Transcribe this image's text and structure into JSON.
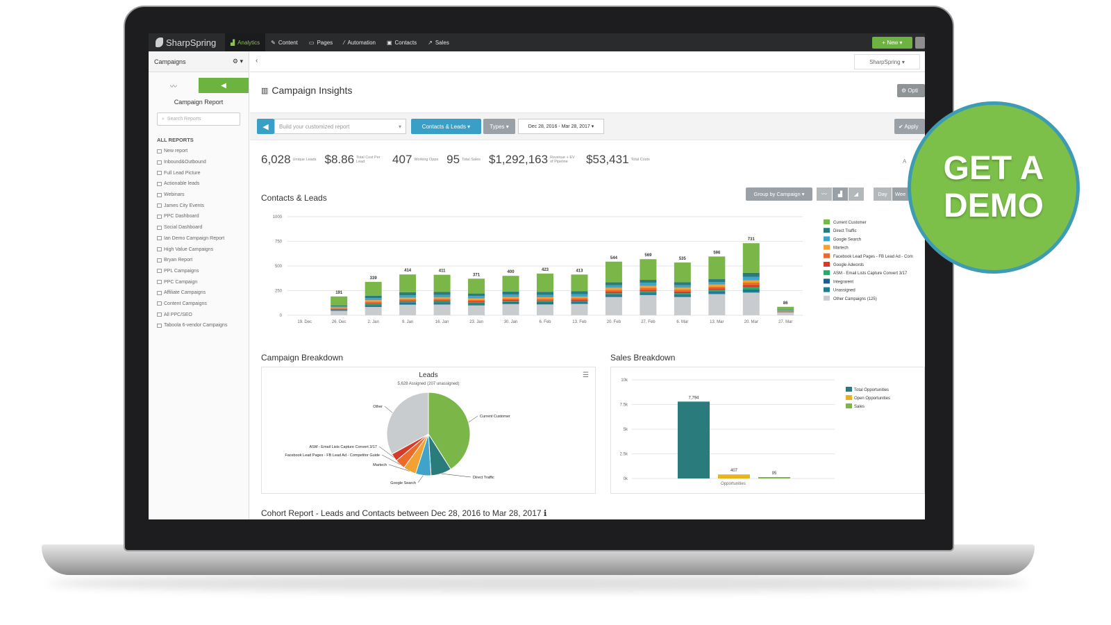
{
  "nav": {
    "logo": "SharpSpring",
    "items": [
      {
        "label": "Analytics",
        "icon": "chart-icon",
        "active": true
      },
      {
        "label": "Content",
        "icon": "pencil-icon"
      },
      {
        "label": "Pages",
        "icon": "page-icon"
      },
      {
        "label": "Automation",
        "icon": "wand-icon"
      },
      {
        "label": "Contacts",
        "icon": "contact-icon"
      },
      {
        "label": "Sales",
        "icon": "trend-icon"
      }
    ],
    "new_label": "+ New ▾"
  },
  "sidebar": {
    "header": "Campaigns",
    "report_title": "Campaign Report",
    "search_placeholder": "Search Reports",
    "all_reports": "ALL REPORTS",
    "reports": [
      "New report",
      "Inbound&Outbound",
      "Full Lead Picture",
      "Actionable leads",
      "Webinars",
      "James City Events",
      "PPC Dashboard",
      "Social Dashboard",
      "Ian Demo Campaign Report",
      "High Value Campaigns",
      "Bryan Report",
      "PPL Campaigns",
      "PPC Campaign",
      "Affiliate Campaigns",
      "Content Campaigns",
      "All PPC/SEO",
      "Taboola 6-vendor Campaigns"
    ]
  },
  "main": {
    "account": "SharpSpring ▾",
    "title": "Campaign Insights",
    "options_label": "⚙ Opti",
    "builder_placeholder": "Build your customized report",
    "contacts_leads": "Contacts & Leads ▾",
    "types": "Types ▾",
    "date_range": "Dec 28, 2016 - Mar 28, 2017 ▾",
    "apply": "✔ Apply",
    "stats": [
      {
        "value": "6,028",
        "label": "Unique Leads"
      },
      {
        "value": "$8.86",
        "label": "Total Cost Per Lead"
      },
      {
        "value": "407",
        "label": "Working Opps"
      },
      {
        "value": "95",
        "label": "Total Sales"
      },
      {
        "value": "$1,292,163",
        "label": "Revenue + EV of Pipeline"
      },
      {
        "value": "$53,431",
        "label": "Total Costs"
      }
    ],
    "stats_tail": "A",
    "contacts_title": "Contacts & Leads",
    "group_by": "Group by Campaign ▾",
    "day": "Day",
    "week": "Wee",
    "breakdown_title": "Campaign Breakdown",
    "sales_title": "Sales Breakdown",
    "cohort_title": "Cohort Report - Leads and Contacts between Dec 28, 2016 to Mar 28, 2017 ℹ"
  },
  "demo": {
    "line1": "GET A",
    "line2": "DEMO"
  },
  "colors": {
    "current_customer": "#7ab648",
    "direct_traffic": "#2a7b7b",
    "google_search": "#3fa4c8",
    "martech": "#f2a132",
    "facebook": "#ec6a2a",
    "google_adwords": "#d63a2a",
    "asm_email": "#2aa86a",
    "integrarent": "#1f5e8c",
    "unassigned": "#1e7e8e",
    "other": "#c9ccce"
  },
  "chart_data": [
    {
      "type": "bar",
      "title": "Contacts & Leads",
      "categories": [
        "19. Dec",
        "26. Dec",
        "2. Jan",
        "9. Jan",
        "16. Jan",
        "23. Jan",
        "30. Jan",
        "6. Feb",
        "13. Feb",
        "20. Feb",
        "27. Feb",
        "6. Mar",
        "13. Mar",
        "20. Mar",
        "27. Mar"
      ],
      "totals": [
        null,
        191,
        339,
        414,
        411,
        371,
        400,
        423,
        413,
        544,
        569,
        535,
        596,
        731,
        86
      ],
      "yticks": [
        0,
        250,
        500,
        750,
        1000
      ],
      "ylim": [
        0,
        1000
      ],
      "series": [
        {
          "name": "Current Customer",
          "values": [
            0,
            90,
            140,
            180,
            175,
            150,
            160,
            185,
            170,
            210,
            210,
            200,
            230,
            300,
            30
          ]
        },
        {
          "name": "Direct Traffic",
          "values": [
            0,
            10,
            25,
            30,
            30,
            25,
            30,
            30,
            30,
            30,
            30,
            30,
            30,
            40,
            5
          ]
        },
        {
          "name": "Google Search",
          "values": [
            0,
            10,
            20,
            25,
            25,
            25,
            25,
            25,
            25,
            25,
            30,
            25,
            25,
            35,
            5
          ]
        },
        {
          "name": "Martech",
          "values": [
            0,
            8,
            15,
            15,
            15,
            15,
            15,
            15,
            15,
            20,
            20,
            20,
            20,
            25,
            3
          ]
        },
        {
          "name": "Facebook Lead Pages - FB Lead Ad - Com",
          "values": [
            0,
            8,
            15,
            15,
            15,
            15,
            15,
            15,
            15,
            20,
            20,
            20,
            20,
            25,
            3
          ]
        },
        {
          "name": "Google Adwords",
          "values": [
            0,
            5,
            10,
            10,
            10,
            10,
            10,
            10,
            10,
            15,
            15,
            15,
            15,
            20,
            2
          ]
        },
        {
          "name": "ASM - Email Lists Capture Convert 3/17",
          "values": [
            0,
            5,
            10,
            10,
            10,
            10,
            10,
            10,
            10,
            14,
            14,
            15,
            16,
            26,
            3
          ]
        },
        {
          "name": "Integrarent",
          "values": [
            0,
            5,
            10,
            10,
            10,
            10,
            10,
            10,
            10,
            10,
            10,
            10,
            10,
            10,
            2
          ]
        },
        {
          "name": "Unassigned",
          "values": [
            0,
            5,
            10,
            12,
            12,
            11,
            12,
            13,
            13,
            15,
            15,
            15,
            15,
            20,
            3
          ]
        },
        {
          "name": "Other Campaigns (125)",
          "values": [
            0,
            45,
            84,
            107,
            109,
            100,
            113,
            110,
            115,
            185,
            205,
            185,
            215,
            230,
            30
          ]
        }
      ],
      "legend": "right"
    },
    {
      "type": "pie",
      "title": "Leads",
      "subtitle": "5,628 Assigned (207 unassigned)",
      "labels": [
        "Current Customer",
        "Direct Traffic",
        "Google Search",
        "Martech",
        "Facebook Lead Pages - FB Lead Ad - Competitor Guide",
        "ASM - Email Lists Capture Convert 3/17",
        "Other"
      ],
      "values": [
        41,
        8,
        6,
        5,
        4,
        3,
        33
      ]
    },
    {
      "type": "bar",
      "title": "Sales Breakdown",
      "categories": [
        "Opportunities"
      ],
      "series": [
        {
          "name": "Total Opportunities",
          "values": [
            7794
          ]
        },
        {
          "name": "Open Opportunities",
          "values": [
            407
          ]
        },
        {
          "name": "Sales",
          "values": [
            95
          ]
        }
      ],
      "data_labels": [
        "7,794",
        "407",
        "95"
      ],
      "yticks": [
        "0k",
        "2.5k",
        "5k",
        "7.5k",
        "10k"
      ],
      "ylim": [
        0,
        10000
      ]
    }
  ]
}
